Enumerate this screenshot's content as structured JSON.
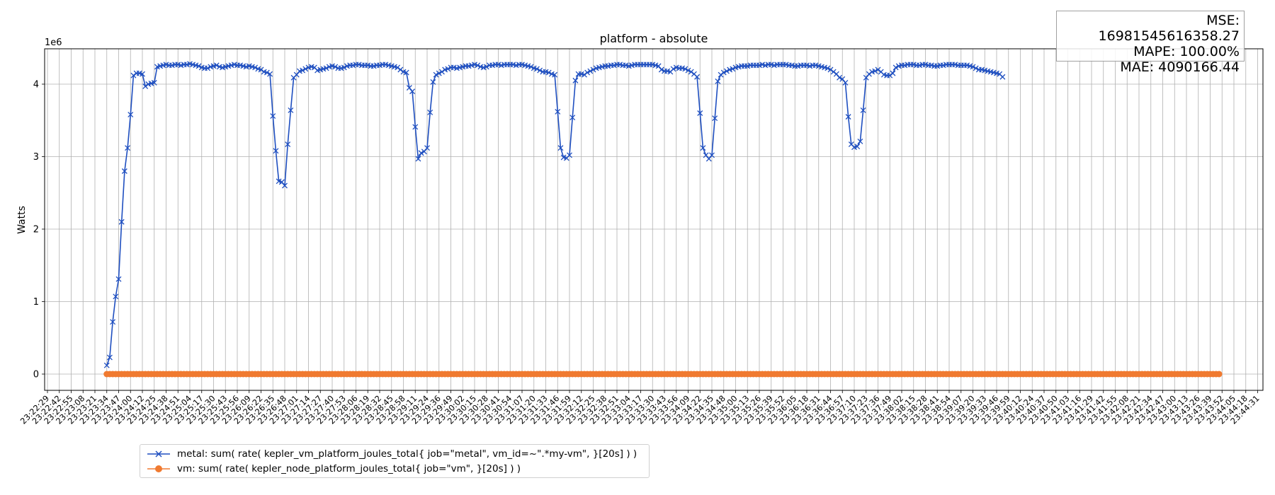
{
  "chart_data": {
    "type": "line",
    "title": "platform - absolute",
    "xlabel": "",
    "ylabel": "Watts",
    "y_offset_label": "1e6",
    "yticks": [
      0,
      1,
      2,
      3,
      4
    ],
    "ylim": [
      -0.22,
      4.5
    ],
    "grid": true,
    "legend_position": "bottom-left",
    "x_tick_labels": [
      "23:22:29",
      "23:22:42",
      "23:22:55",
      "23:23:08",
      "23:23:21",
      "23:23:34",
      "23:23:47",
      "23:24:00",
      "23:24:12",
      "23:24:25",
      "23:24:38",
      "23:24:51",
      "23:25:04",
      "23:25:17",
      "23:25:30",
      "23:25:43",
      "23:25:56",
      "23:26:09",
      "23:26:22",
      "23:26:35",
      "23:26:48",
      "23:27:01",
      "23:27:14",
      "23:27:27",
      "23:27:40",
      "23:27:53",
      "23:28:06",
      "23:28:19",
      "23:28:32",
      "23:28:45",
      "23:28:58",
      "23:29:11",
      "23:29:24",
      "23:29:36",
      "23:29:49",
      "23:30:02",
      "23:30:15",
      "23:30:28",
      "23:30:41",
      "23:30:54",
      "23:31:07",
      "23:31:20",
      "23:31:33",
      "23:31:46",
      "23:31:59",
      "23:32:12",
      "23:32:25",
      "23:32:38",
      "23:32:51",
      "23:33:04",
      "23:33:17",
      "23:33:30",
      "23:33:43",
      "23:33:56",
      "23:34:09",
      "23:34:22",
      "23:34:35",
      "23:34:48",
      "23:35:00",
      "23:35:13",
      "23:35:26",
      "23:35:39",
      "23:35:52",
      "23:36:05",
      "23:36:18",
      "23:36:31",
      "23:36:44",
      "23:36:57",
      "23:37:10",
      "23:37:23",
      "23:37:36",
      "23:37:49",
      "23:38:02",
      "23:38:15",
      "23:38:28",
      "23:38:41",
      "23:38:54",
      "23:39:07",
      "23:39:20",
      "23:39:33",
      "23:39:46",
      "23:39:59",
      "23:40:12",
      "23:40:24",
      "23:40:37",
      "23:40:50",
      "23:41:03",
      "23:41:16",
      "23:41:29",
      "23:41:42",
      "23:41:55",
      "23:42:08",
      "23:42:21",
      "23:42:34",
      "23:42:47",
      "23:43:00",
      "23:43:13",
      "23:43:26",
      "23:43:39",
      "23:43:52",
      "23:44:05",
      "23:44:18",
      "23:44:31"
    ],
    "series": [
      {
        "name": "metal: sum( rate( kepler_vm_platform_joules_total{ job=\"metal\", vm_id=~\".*my-vm\", }[20s] ) )",
        "color": "#1f4fc0",
        "marker": "x",
        "x_start_index": 5,
        "x_step": 0.25,
        "values": [
          0.12,
          0.23,
          0.72,
          1.07,
          1.31,
          2.1,
          2.8,
          3.12,
          3.58,
          4.12,
          4.15,
          4.15,
          4.14,
          3.97,
          4.0,
          4.01,
          4.02,
          4.24,
          4.25,
          4.26,
          4.27,
          4.26,
          4.26,
          4.27,
          4.27,
          4.26,
          4.27,
          4.27,
          4.28,
          4.27,
          4.26,
          4.25,
          4.23,
          4.22,
          4.22,
          4.24,
          4.25,
          4.26,
          4.24,
          4.23,
          4.24,
          4.25,
          4.26,
          4.27,
          4.26,
          4.26,
          4.25,
          4.24,
          4.25,
          4.24,
          4.23,
          4.21,
          4.2,
          4.17,
          4.16,
          4.14,
          3.56,
          3.08,
          2.66,
          2.65,
          2.6,
          3.17,
          3.64,
          4.09,
          4.13,
          4.18,
          4.19,
          4.21,
          4.23,
          4.24,
          4.23,
          4.19,
          4.2,
          4.21,
          4.22,
          4.24,
          4.25,
          4.24,
          4.22,
          4.22,
          4.23,
          4.25,
          4.26,
          4.26,
          4.27,
          4.27,
          4.26,
          4.26,
          4.26,
          4.25,
          4.25,
          4.26,
          4.26,
          4.27,
          4.27,
          4.26,
          4.25,
          4.24,
          4.23,
          4.2,
          4.17,
          4.16,
          3.95,
          3.9,
          3.41,
          2.97,
          3.05,
          3.07,
          3.12,
          3.61,
          4.03,
          4.13,
          4.15,
          4.17,
          4.2,
          4.21,
          4.23,
          4.23,
          4.22,
          4.23,
          4.24,
          4.25,
          4.25,
          4.26,
          4.27,
          4.26,
          4.24,
          4.23,
          4.24,
          4.26,
          4.26,
          4.27,
          4.27,
          4.26,
          4.27,
          4.27,
          4.27,
          4.27,
          4.26,
          4.27,
          4.27,
          4.26,
          4.25,
          4.24,
          4.22,
          4.21,
          4.19,
          4.17,
          4.17,
          4.16,
          4.14,
          4.13,
          3.62,
          3.12,
          2.99,
          2.98,
          3.02,
          3.54,
          4.05,
          4.14,
          4.14,
          4.13,
          4.16,
          4.18,
          4.2,
          4.22,
          4.23,
          4.24,
          4.25,
          4.25,
          4.26,
          4.26,
          4.27,
          4.27,
          4.26,
          4.26,
          4.25,
          4.26,
          4.27,
          4.27,
          4.27,
          4.27,
          4.27,
          4.27,
          4.27,
          4.26,
          4.25,
          4.2,
          4.18,
          4.18,
          4.17,
          4.21,
          4.23,
          4.22,
          4.22,
          4.21,
          4.19,
          4.17,
          4.14,
          4.1,
          3.6,
          3.12,
          3.02,
          2.97,
          3.02,
          3.53,
          4.04,
          4.13,
          4.16,
          4.18,
          4.2,
          4.21,
          4.23,
          4.24,
          4.25,
          4.25,
          4.25,
          4.26,
          4.26,
          4.26,
          4.26,
          4.27,
          4.26,
          4.27,
          4.27,
          4.26,
          4.27,
          4.27,
          4.27,
          4.27,
          4.26,
          4.26,
          4.25,
          4.25,
          4.26,
          4.26,
          4.26,
          4.25,
          4.26,
          4.26,
          4.25,
          4.24,
          4.23,
          4.22,
          4.2,
          4.17,
          4.14,
          4.09,
          4.07,
          4.02,
          3.55,
          3.17,
          3.13,
          3.14,
          3.21,
          3.64,
          4.09,
          4.14,
          4.17,
          4.18,
          4.2,
          4.17,
          4.13,
          4.12,
          4.12,
          4.15,
          4.23,
          4.25,
          4.26,
          4.26,
          4.27,
          4.27,
          4.27,
          4.26,
          4.26,
          4.27,
          4.27,
          4.26,
          4.26,
          4.25,
          4.25,
          4.26,
          4.26,
          4.27,
          4.27,
          4.27,
          4.27,
          4.26,
          4.26,
          4.26,
          4.26,
          4.25,
          4.24,
          4.22,
          4.2,
          4.2,
          4.19,
          4.18,
          4.17,
          4.16,
          4.15,
          4.14,
          4.1
        ]
      },
      {
        "name": "vm: sum( rate( kepler_node_platform_joules_total{ job=\"vm\", }[20s] ) )",
        "color": "#f07a30",
        "marker": "o",
        "x_start_index": 5,
        "x_end_index": 98.75,
        "constant_value": 0
      }
    ],
    "stats": {
      "mse": "MSE: 16981545616358.27",
      "mape": "MAPE: 100.00%",
      "mae": "MAE: 4090166.44"
    }
  }
}
